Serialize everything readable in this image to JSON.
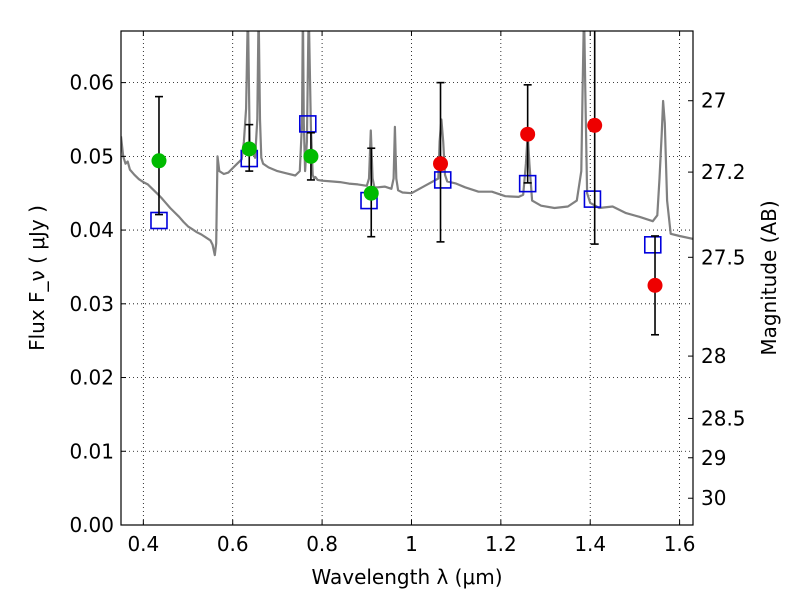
{
  "chart_data": {
    "type": "scatter",
    "title": "",
    "xlabel": "Wavelength  λ (μm)",
    "ylabel": "Flux  F_ν  ( μJy )",
    "ylabel_right": "Magnitude (AB)",
    "xlim": [
      0.35,
      1.63
    ],
    "ylim": [
      0.0,
      0.067
    ],
    "grid": true,
    "x_ticks": [
      {
        "value": 0.4,
        "label": "0.4"
      },
      {
        "value": 0.6,
        "label": "0.6"
      },
      {
        "value": 0.8,
        "label": "0.8"
      },
      {
        "value": 1.0,
        "label": "1"
      },
      {
        "value": 1.2,
        "label": "1.2"
      },
      {
        "value": 1.4,
        "label": "1.4"
      },
      {
        "value": 1.6,
        "label": "1.6"
      }
    ],
    "y_ticks": [
      {
        "value": 0.0,
        "label": "0.00"
      },
      {
        "value": 0.01,
        "label": "0.01"
      },
      {
        "value": 0.02,
        "label": "0.02"
      },
      {
        "value": 0.03,
        "label": "0.03"
      },
      {
        "value": 0.04,
        "label": "0.04"
      },
      {
        "value": 0.05,
        "label": "0.05"
      },
      {
        "value": 0.06,
        "label": "0.06"
      }
    ],
    "right_ticks": [
      {
        "value": 27,
        "label": "27"
      },
      {
        "value": 27.2,
        "label": "27.2"
      },
      {
        "value": 27.5,
        "label": "27.5"
      },
      {
        "value": 28,
        "label": "28"
      },
      {
        "value": 28.5,
        "label": "28.5"
      },
      {
        "value": 29,
        "label": "29"
      },
      {
        "value": 30,
        "label": "30"
      }
    ],
    "observed": [
      {
        "x": 0.435,
        "y": 0.0494,
        "err_low": 0.0421,
        "err_high": 0.0581,
        "color": "#00bb00"
      },
      {
        "x": 0.637,
        "y": 0.051,
        "err_low": 0.048,
        "err_high": 0.0543,
        "color": "#00bb00"
      },
      {
        "x": 0.775,
        "y": 0.05,
        "err_low": 0.0468,
        "err_high": 0.0532,
        "color": "#00bb00"
      },
      {
        "x": 0.91,
        "y": 0.045,
        "err_low": 0.0391,
        "err_high": 0.0511,
        "color": "#00bb00"
      },
      {
        "x": 1.065,
        "y": 0.049,
        "err_low": 0.0384,
        "err_high": 0.06,
        "color": "#ee0000"
      },
      {
        "x": 1.26,
        "y": 0.053,
        "err_low": 0.0464,
        "err_high": 0.0597,
        "color": "#ee0000"
      },
      {
        "x": 1.41,
        "y": 0.0542,
        "err_low": 0.0381,
        "err_high": 0.07,
        "color": "#ee0000"
      },
      {
        "x": 1.545,
        "y": 0.0325,
        "err_low": 0.0258,
        "err_high": 0.0392,
        "color": "#ee0000"
      }
    ],
    "model_points": [
      {
        "x": 0.435,
        "y": 0.0413
      },
      {
        "x": 0.637,
        "y": 0.0497
      },
      {
        "x": 0.768,
        "y": 0.0544
      },
      {
        "x": 0.905,
        "y": 0.044
      },
      {
        "x": 1.07,
        "y": 0.0468
      },
      {
        "x": 1.26,
        "y": 0.0463
      },
      {
        "x": 1.405,
        "y": 0.0442
      },
      {
        "x": 1.54,
        "y": 0.038
      }
    ],
    "spectrum": {
      "color": "#808080",
      "x": [
        0.35,
        0.355,
        0.36,
        0.365,
        0.37,
        0.38,
        0.39,
        0.4,
        0.41,
        0.42,
        0.43,
        0.44,
        0.45,
        0.46,
        0.47,
        0.48,
        0.49,
        0.5,
        0.51,
        0.52,
        0.53,
        0.54,
        0.55,
        0.555,
        0.56,
        0.563,
        0.566,
        0.57,
        0.58,
        0.59,
        0.6,
        0.61,
        0.62,
        0.625,
        0.63,
        0.634,
        0.638,
        0.642,
        0.646,
        0.65,
        0.655,
        0.658,
        0.661,
        0.664,
        0.668,
        0.68,
        0.7,
        0.72,
        0.74,
        0.75,
        0.755,
        0.757,
        0.759,
        0.762,
        0.766,
        0.77,
        0.775,
        0.779,
        0.782,
        0.785,
        0.79,
        0.8,
        0.82,
        0.84,
        0.86,
        0.88,
        0.9,
        0.905,
        0.909,
        0.913,
        0.917,
        0.925,
        0.94,
        0.955,
        0.96,
        0.963,
        0.966,
        0.97,
        0.98,
        1.0,
        1.03,
        1.06,
        1.063,
        1.067,
        1.071,
        1.075,
        1.08,
        1.1,
        1.12,
        1.15,
        1.18,
        1.21,
        1.24,
        1.25,
        1.256,
        1.26,
        1.264,
        1.27,
        1.29,
        1.32,
        1.35,
        1.37,
        1.38,
        1.383,
        1.386,
        1.389,
        1.393,
        1.4,
        1.42,
        1.45,
        1.48,
        1.51,
        1.54,
        1.55,
        1.555,
        1.56,
        1.563,
        1.567,
        1.572,
        1.58,
        1.6,
        1.63
      ],
      "y": [
        0.0527,
        0.05,
        0.049,
        0.0493,
        0.0482,
        0.0475,
        0.0469,
        0.0465,
        0.0462,
        0.0456,
        0.045,
        0.0444,
        0.0437,
        0.043,
        0.0424,
        0.0418,
        0.0411,
        0.0405,
        0.0401,
        0.0397,
        0.0394,
        0.039,
        0.0386,
        0.038,
        0.0366,
        0.0382,
        0.05,
        0.048,
        0.0476,
        0.0478,
        0.0484,
        0.049,
        0.0496,
        0.052,
        0.0565,
        0.07,
        0.052,
        0.051,
        0.0505,
        0.0498,
        0.055,
        0.07,
        0.055,
        0.0498,
        0.049,
        0.0485,
        0.048,
        0.0477,
        0.0474,
        0.048,
        0.0545,
        0.07,
        0.0545,
        0.048,
        0.052,
        0.07,
        0.054,
        0.0475,
        0.047,
        0.0472,
        0.0468,
        0.0467,
        0.0466,
        0.0465,
        0.0463,
        0.0462,
        0.046,
        0.047,
        0.0535,
        0.047,
        0.0458,
        0.0458,
        0.0459,
        0.0456,
        0.047,
        0.054,
        0.047,
        0.0454,
        0.0451,
        0.045,
        0.046,
        0.047,
        0.052,
        0.055,
        0.052,
        0.0475,
        0.0466,
        0.0463,
        0.0458,
        0.0452,
        0.0452,
        0.0446,
        0.0445,
        0.0448,
        0.049,
        0.053,
        0.049,
        0.044,
        0.0433,
        0.043,
        0.0432,
        0.044,
        0.048,
        0.059,
        0.07,
        0.059,
        0.045,
        0.0437,
        0.043,
        0.0432,
        0.0423,
        0.0418,
        0.0412,
        0.042,
        0.047,
        0.053,
        0.0575,
        0.0545,
        0.044,
        0.0395,
        0.0392,
        0.0388
      ]
    }
  }
}
